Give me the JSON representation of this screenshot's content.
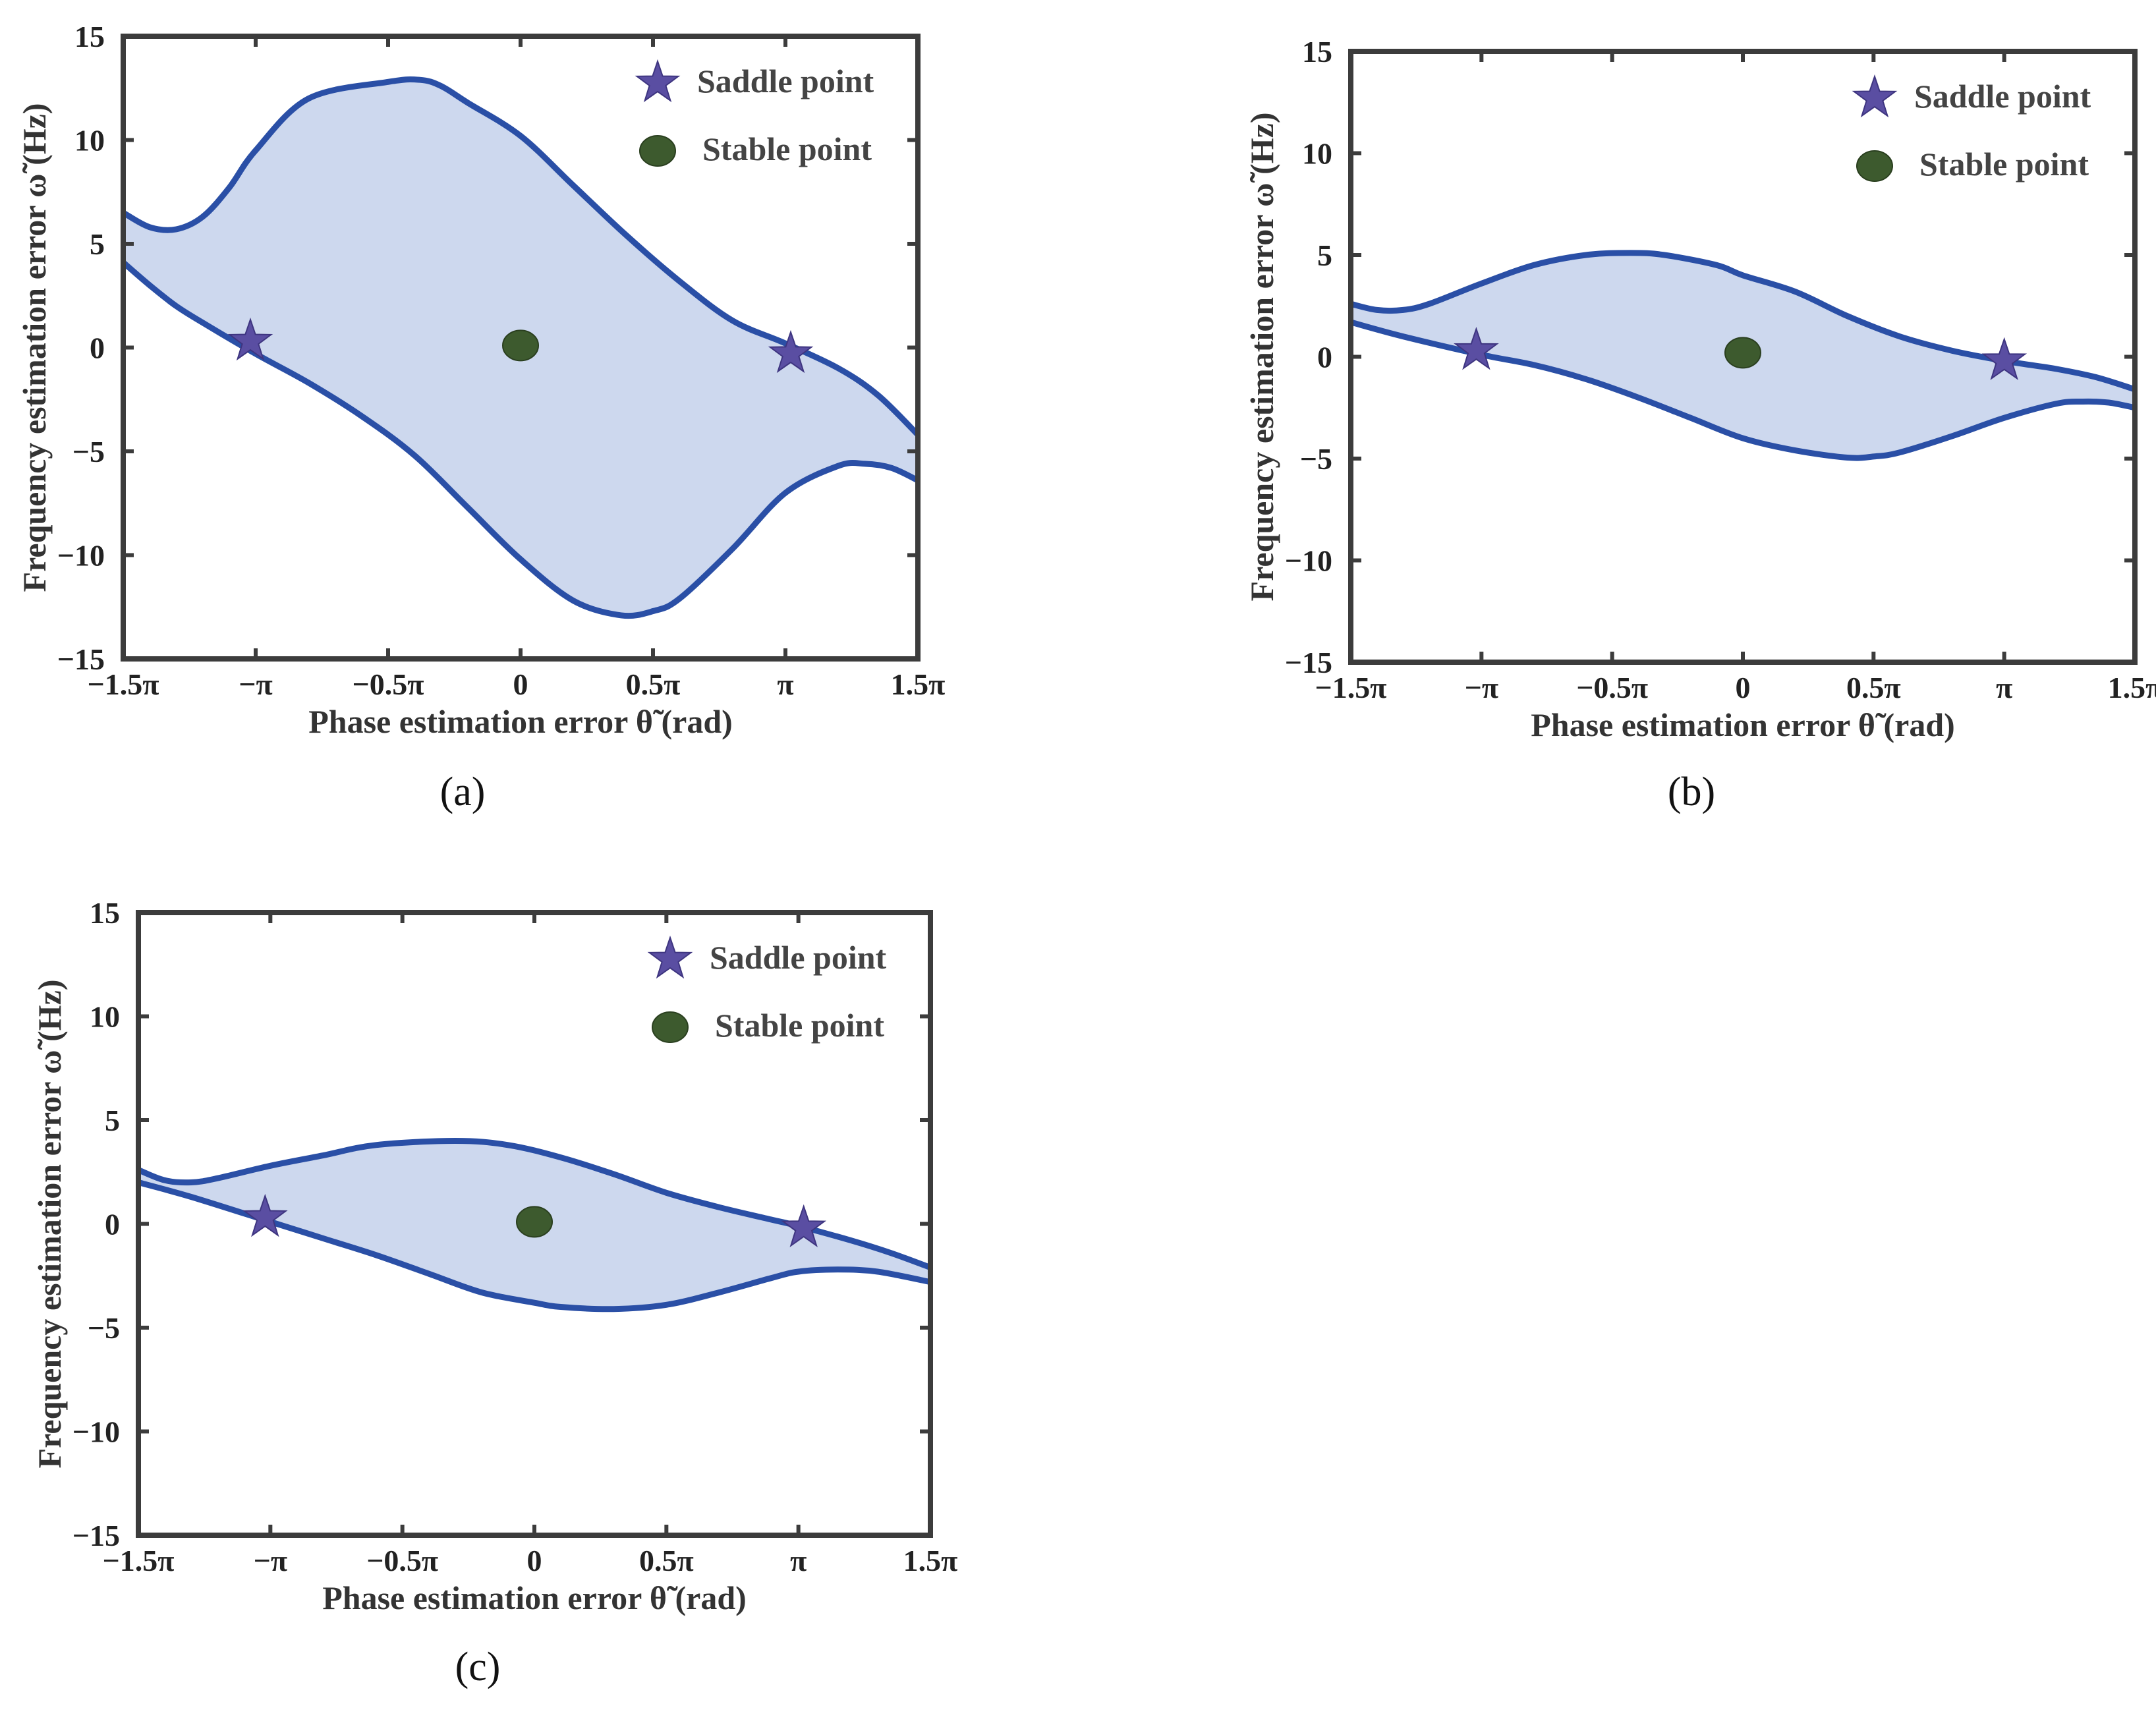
{
  "chart_data": [
    {
      "type": "area",
      "panel_label": "(a)",
      "xlabel": "Phase estimation error θ̃ (rad)",
      "ylabel": "Frequency estimation error ω̃ (Hz)",
      "xlim": [
        -1.5,
        1.5
      ],
      "ylim": [
        -15,
        15
      ],
      "x_unit": "pi rad",
      "xtick_values": [
        -1.5,
        -1,
        -0.5,
        0,
        0.5,
        1,
        1.5
      ],
      "xtick_labels": [
        "−1.5π",
        "−π",
        "−0.5π",
        "0",
        "0.5π",
        "π",
        "1.5π"
      ],
      "ytick_values": [
        -15,
        -10,
        -5,
        0,
        5,
        10,
        15
      ],
      "ytick_labels": [
        "−15",
        "−10",
        "−5",
        "0",
        "5",
        "10",
        "15"
      ],
      "series": [
        {
          "name": "upper boundary",
          "points": [
            [
              -1.5,
              6.5
            ],
            [
              -1.4,
              5.8
            ],
            [
              -1.3,
              5.7
            ],
            [
              -1.2,
              6.3
            ],
            [
              -1.1,
              7.7
            ],
            [
              -1.0,
              9.5
            ],
            [
              -0.8,
              12.0
            ],
            [
              -0.5,
              12.8
            ],
            [
              -0.38,
              12.9
            ],
            [
              -0.3,
              12.6
            ],
            [
              -0.2,
              11.8
            ],
            [
              0.0,
              10.2
            ],
            [
              0.2,
              7.8
            ],
            [
              0.4,
              5.4
            ],
            [
              0.6,
              3.2
            ],
            [
              0.8,
              1.3
            ],
            [
              1.0,
              0.2
            ],
            [
              1.2,
              -1.0
            ],
            [
              1.35,
              -2.3
            ],
            [
              1.5,
              -4.2
            ]
          ]
        },
        {
          "name": "lower boundary",
          "points": [
            [
              -1.5,
              4.1
            ],
            [
              -1.4,
              3.0
            ],
            [
              -1.3,
              2.0
            ],
            [
              -1.2,
              1.2
            ],
            [
              -1.0,
              -0.3
            ],
            [
              -0.8,
              -1.7
            ],
            [
              -0.6,
              -3.3
            ],
            [
              -0.4,
              -5.2
            ],
            [
              -0.2,
              -7.7
            ],
            [
              0.0,
              -10.2
            ],
            [
              0.2,
              -12.2
            ],
            [
              0.38,
              -12.9
            ],
            [
              0.5,
              -12.7
            ],
            [
              0.6,
              -12.1
            ],
            [
              0.8,
              -9.7
            ],
            [
              1.0,
              -7.0
            ],
            [
              1.2,
              -5.7
            ],
            [
              1.3,
              -5.6
            ],
            [
              1.4,
              -5.8
            ],
            [
              1.5,
              -6.4
            ]
          ]
        }
      ],
      "saddle_points": [
        [
          -1.02,
          0.3
        ],
        [
          1.02,
          -0.3
        ]
      ],
      "stable_points": [
        [
          0,
          0.1
        ]
      ],
      "legend": [
        "Saddle point",
        "Stable point"
      ],
      "legend_position": "top-right"
    },
    {
      "type": "area",
      "panel_label": "(b)",
      "xlabel": "Phase estimation error θ̃ (rad)",
      "ylabel": "Frequency estimation error ω̃ (Hz)",
      "xlim": [
        -1.5,
        1.5
      ],
      "ylim": [
        -15,
        15
      ],
      "x_unit": "pi rad",
      "xtick_values": [
        -1.5,
        -1,
        -0.5,
        0,
        0.5,
        1,
        1.5
      ],
      "xtick_labels": [
        "−1.5π",
        "−π",
        "−0.5π",
        "0",
        "0.5π",
        "π",
        "1.5π"
      ],
      "ytick_values": [
        -15,
        -10,
        -5,
        0,
        5,
        10,
        15
      ],
      "ytick_labels": [
        "−15",
        "−10",
        "−5",
        "0",
        "5",
        "10",
        "15"
      ],
      "series": [
        {
          "name": "upper boundary",
          "points": [
            [
              -1.5,
              2.6
            ],
            [
              -1.4,
              2.3
            ],
            [
              -1.3,
              2.3
            ],
            [
              -1.2,
              2.6
            ],
            [
              -1.0,
              3.6
            ],
            [
              -0.8,
              4.5
            ],
            [
              -0.6,
              5.0
            ],
            [
              -0.43,
              5.1
            ],
            [
              -0.3,
              5.0
            ],
            [
              -0.1,
              4.5
            ],
            [
              0.0,
              4.0
            ],
            [
              0.2,
              3.2
            ],
            [
              0.4,
              2.0
            ],
            [
              0.6,
              1.0
            ],
            [
              0.8,
              0.3
            ],
            [
              1.0,
              -0.2
            ],
            [
              1.2,
              -0.6
            ],
            [
              1.35,
              -1.0
            ],
            [
              1.5,
              -1.6
            ]
          ]
        },
        {
          "name": "lower boundary",
          "points": [
            [
              -1.5,
              1.7
            ],
            [
              -1.3,
              1.0
            ],
            [
              -1.0,
              0.1
            ],
            [
              -0.8,
              -0.4
            ],
            [
              -0.6,
              -1.1
            ],
            [
              -0.4,
              -2.0
            ],
            [
              -0.2,
              -3.0
            ],
            [
              0.0,
              -4.0
            ],
            [
              0.2,
              -4.6
            ],
            [
              0.4,
              -4.95
            ],
            [
              0.5,
              -4.9
            ],
            [
              0.6,
              -4.7
            ],
            [
              0.8,
              -3.9
            ],
            [
              1.0,
              -3.0
            ],
            [
              1.2,
              -2.3
            ],
            [
              1.3,
              -2.2
            ],
            [
              1.4,
              -2.25
            ],
            [
              1.5,
              -2.5
            ]
          ]
        }
      ],
      "saddle_points": [
        [
          -1.02,
          0.3
        ],
        [
          1.0,
          -0.2
        ]
      ],
      "stable_points": [
        [
          0,
          0.2
        ]
      ],
      "legend": [
        "Saddle point",
        "Stable point"
      ],
      "legend_position": "top-right"
    },
    {
      "type": "area",
      "panel_label": "(c)",
      "xlabel": "Phase estimation error θ̃ (rad)",
      "ylabel": "Frequency estimation error ω̃ (Hz)",
      "xlim": [
        -1.5,
        1.5
      ],
      "ylim": [
        -15,
        15
      ],
      "x_unit": "pi rad",
      "xtick_values": [
        -1.5,
        -1,
        -0.5,
        0,
        0.5,
        1,
        1.5
      ],
      "xtick_labels": [
        "−1.5π",
        "−π",
        "−0.5π",
        "0",
        "0.5π",
        "π",
        "1.5π"
      ],
      "ytick_values": [
        -15,
        -10,
        -5,
        0,
        5,
        10,
        15
      ],
      "ytick_labels": [
        "−15",
        "−10",
        "−5",
        "0",
        "5",
        "10",
        "15"
      ],
      "series": [
        {
          "name": "upper boundary",
          "points": [
            [
              -1.5,
              2.6
            ],
            [
              -1.4,
              2.1
            ],
            [
              -1.3,
              2.0
            ],
            [
              -1.2,
              2.2
            ],
            [
              -1.0,
              2.8
            ],
            [
              -0.8,
              3.3
            ],
            [
              -0.6,
              3.8
            ],
            [
              -0.3,
              4.0
            ],
            [
              -0.1,
              3.8
            ],
            [
              0.1,
              3.2
            ],
            [
              0.3,
              2.4
            ],
            [
              0.5,
              1.5
            ],
            [
              0.7,
              0.8
            ],
            [
              0.9,
              0.2
            ],
            [
              1.0,
              -0.1
            ],
            [
              1.2,
              -0.8
            ],
            [
              1.35,
              -1.4
            ],
            [
              1.5,
              -2.1
            ]
          ]
        },
        {
          "name": "lower boundary",
          "points": [
            [
              -1.5,
              2.0
            ],
            [
              -1.3,
              1.3
            ],
            [
              -1.0,
              0.1
            ],
            [
              -0.8,
              -0.7
            ],
            [
              -0.6,
              -1.5
            ],
            [
              -0.4,
              -2.4
            ],
            [
              -0.2,
              -3.3
            ],
            [
              0.0,
              -3.8
            ],
            [
              0.1,
              -4.0
            ],
            [
              0.3,
              -4.1
            ],
            [
              0.5,
              -3.9
            ],
            [
              0.7,
              -3.3
            ],
            [
              0.9,
              -2.6
            ],
            [
              1.0,
              -2.3
            ],
            [
              1.15,
              -2.2
            ],
            [
              1.3,
              -2.3
            ],
            [
              1.5,
              -2.8
            ]
          ]
        }
      ],
      "saddle_points": [
        [
          -1.02,
          0.3
        ],
        [
          1.02,
          -0.2
        ]
      ],
      "stable_points": [
        [
          0,
          0.1
        ]
      ],
      "legend": [
        "Saddle point",
        "Stable point"
      ],
      "legend_position": "top-right"
    }
  ],
  "colors": {
    "boundary": "#2a4fa6",
    "fill": "#cdd8ee",
    "saddle": "#5a4ea2",
    "stable": "#3d5a2e",
    "frame": "#3c3c3c"
  }
}
